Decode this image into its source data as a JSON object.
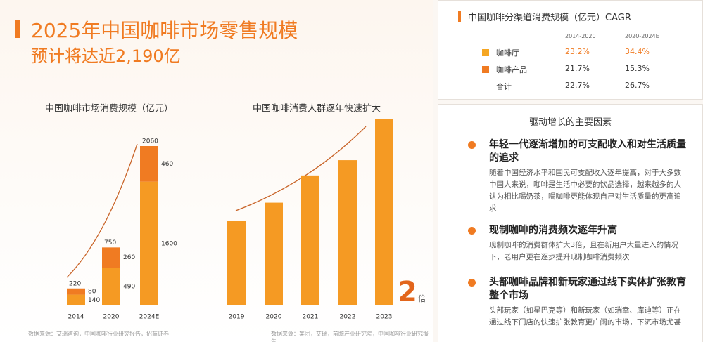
{
  "header": {
    "title": "2025年中国咖啡市场零售规模",
    "subtitle": "预计将达近2,190亿"
  },
  "chart_data": [
    {
      "type": "stacked-bar",
      "title": "中国咖啡市场消费规模（亿元）",
      "categories": [
        "2014",
        "2020",
        "2024E"
      ],
      "series": [
        {
          "color": "#f59a23",
          "values": [
            140,
            490,
            1600
          ]
        },
        {
          "color": "#f07b22",
          "values": [
            80,
            260,
            460
          ]
        }
      ],
      "totals": [
        220,
        750,
        2060
      ]
    },
    {
      "type": "bar",
      "title": "中国咖啡消费人群逐年快速扩大",
      "categories": [
        "2019",
        "2020",
        "2021",
        "2022",
        "2023"
      ],
      "values": [
        1,
        1.21,
        1.53,
        1.71,
        2.19
      ],
      "color": "#f59a23",
      "annotation": "2",
      "annotation_unit": "倍"
    }
  ],
  "sources": [
    "数据来源：艾瑞咨询，中国咖啡行业研究报告，招商证券",
    "数据来源：美团，艾瑞，前瞻产业研究院，中国咖啡行业研究报告"
  ],
  "table": {
    "title": "中国咖啡分渠道消费规模（亿元）CAGR",
    "columns": [
      "2014-2020",
      "2020-2024E"
    ],
    "rows": [
      [
        "咖啡厅",
        "23.2%",
        "34.4%"
      ],
      [
        "咖啡产品",
        "21.7%",
        "15.3%"
      ],
      [
        "合计",
        "22.7%",
        "26.7%"
      ]
    ]
  },
  "factors": {
    "title": "驱动增长的主要因素",
    "items": [
      {
        "heading": "年轻一代逐渐增加的可支配收入和对生活质量的追求",
        "body": "随着中国经济水平和国民可支配收入逐年提高，对于大多数中国人来说，咖啡是生活中必要的饮品选择，越来越多的人认为相比喝奶茶，喝咖啡更能体现自己对生活质量的更高追求"
      },
      {
        "heading": "现制咖啡的消费频次逐年升高",
        "body": "现制咖啡的消费群体扩大3倍，且在新用户大量进入的情况下，老用户更在逐步提升现制咖啡消费频次"
      },
      {
        "heading": "头部咖啡品牌和新玩家通过线下实体扩张教育整个市场",
        "body": "头部玩家（如星巴克等）和新玩家（如瑞幸、库迪等）正在通过线下门店的快速扩张教育更广阔的市场，下沉市场尤甚"
      }
    ]
  }
}
